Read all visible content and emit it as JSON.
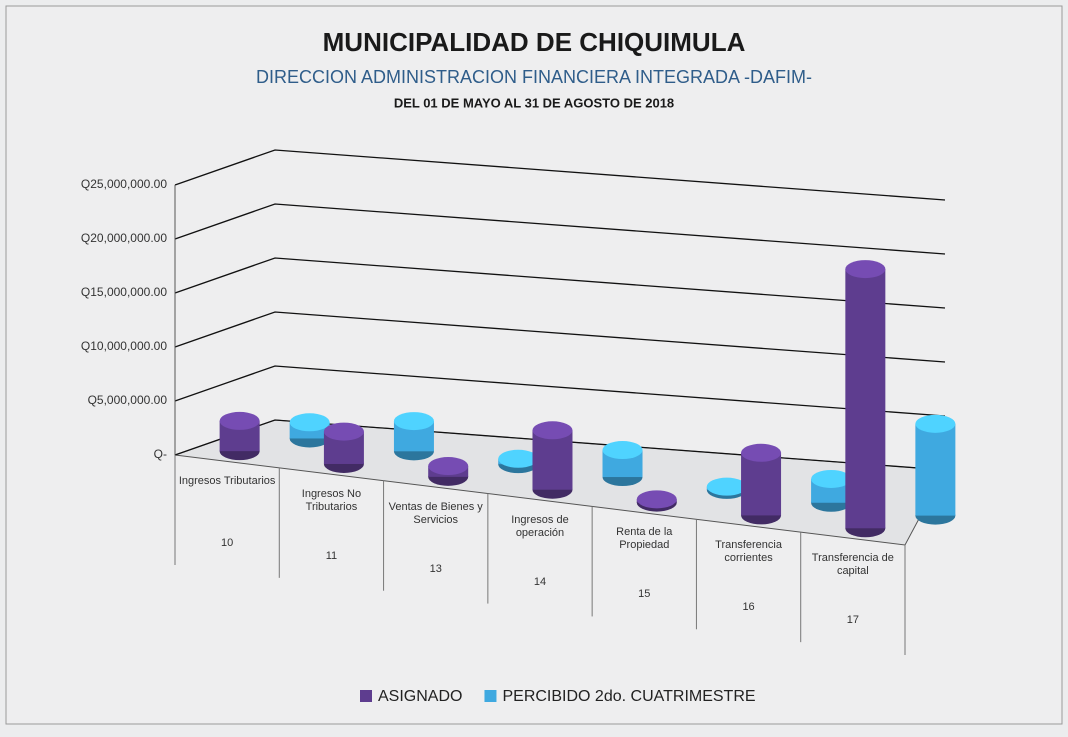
{
  "chart_data": {
    "type": "bar3d",
    "title": "MUNICIPALIDAD DE CHIQUIMULA",
    "subtitle": "DIRECCION ADMINISTRACION FINANCIERA INTEGRADA -DAFIM-",
    "period": "DEL 01 DE MAYO AL 31 DE AGOSTO DE 2018",
    "categories": [
      "Ingresos Tributarios",
      "Ingresos No Tributarios",
      "Ventas de Bienes y Servicios",
      "Ingresos de operación",
      "Renta de la Propiedad",
      "Transferencia corrientes",
      "Transferencia de capital"
    ],
    "category_groups": [
      "10",
      "11",
      "13",
      "14",
      "15",
      "16",
      "17"
    ],
    "series": [
      {
        "name": "ASIGNADO",
        "color": "#5e3d8f",
        "values": [
          2800000,
          3000000,
          1000000,
          5500000,
          300000,
          5800000,
          24000000
        ]
      },
      {
        "name": "PERCIBIDO 2do. CUATRIMESTRE",
        "color": "#3fa9e0",
        "values": [
          1500000,
          2800000,
          500000,
          2500000,
          300000,
          2200000,
          8500000
        ]
      }
    ],
    "ylim": [
      0,
      25000000
    ],
    "yticks": [
      {
        "value": 0,
        "label": "Q-"
      },
      {
        "value": 5000000,
        "label": "Q5,000,000.00"
      },
      {
        "value": 10000000,
        "label": "Q10,000,000.00"
      },
      {
        "value": 15000000,
        "label": "Q15,000,000.00"
      },
      {
        "value": 20000000,
        "label": "Q20,000,000.00"
      },
      {
        "value": 25000000,
        "label": "Q25,000,000.00"
      }
    ],
    "grid": true,
    "legend": "bottom"
  }
}
